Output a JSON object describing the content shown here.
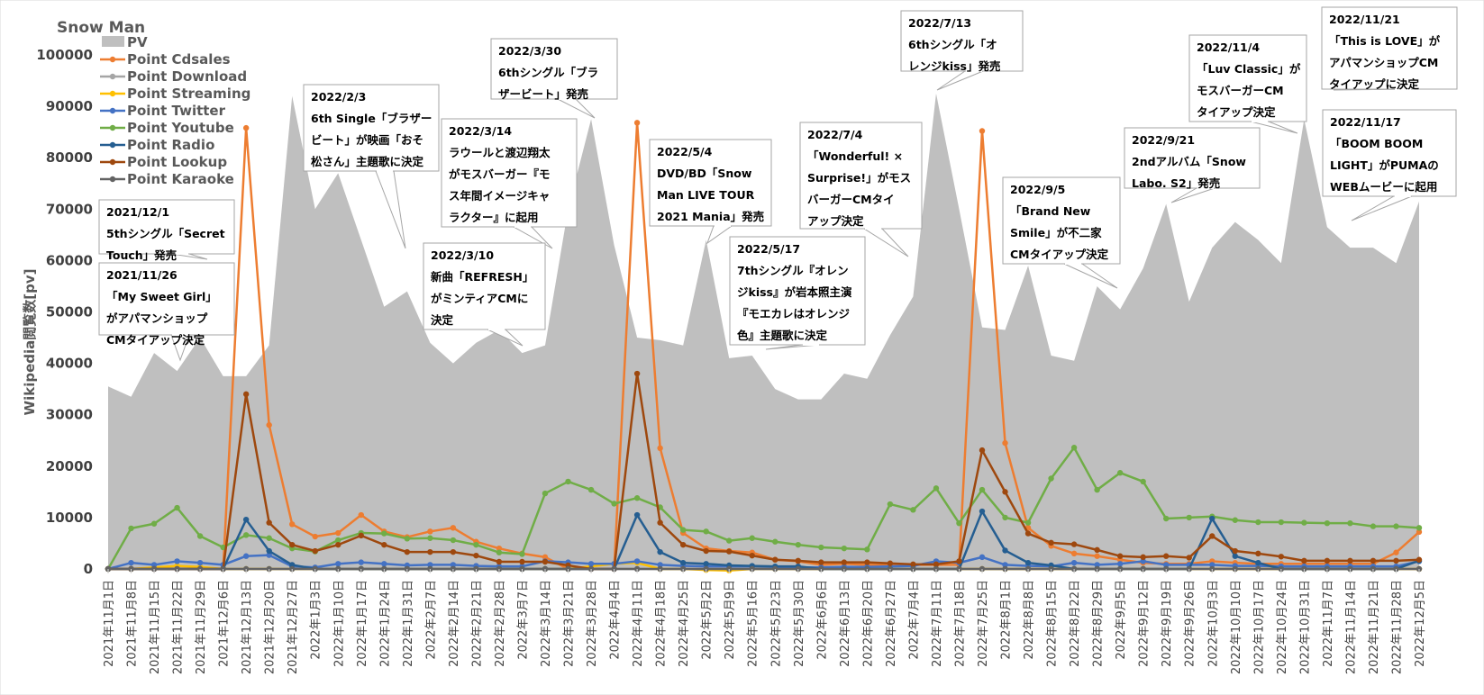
{
  "chart_data": {
    "type": "line",
    "title": "Snow Man",
    "ylabel": "Wikipedia閲覧数[pv]",
    "xlabel": "",
    "ylim": [
      0,
      100000
    ],
    "yticks": [
      0,
      10000,
      20000,
      30000,
      40000,
      50000,
      60000,
      70000,
      80000,
      90000,
      100000
    ],
    "yticklabels": [
      "0",
      "10000",
      "20000",
      "30000",
      "40000",
      "50000",
      "60000",
      "70000",
      "80000",
      "90000",
      "100000"
    ],
    "legend_position": "top-left",
    "categories": [
      "2021年11月1日",
      "2021年11月8日",
      "2021年11月15日",
      "2021年11月22日",
      "2021年11月29日",
      "2021年12月6日",
      "2021年12月13日",
      "2021年12月20日",
      "2021年12月27日",
      "2022年1月3日",
      "2022年1月10日",
      "2022年1月17日",
      "2022年1月24日",
      "2022年1月31日",
      "2022年2月7日",
      "2022年2月14日",
      "2022年2月21日",
      "2022年2月28日",
      "2022年3月7日",
      "2022年3月14日",
      "2022年3月21日",
      "2022年3月28日",
      "2022年4月4日",
      "2022年4月11日",
      "2022年4月18日",
      "2022年4月25日",
      "2022年5月2日",
      "2022年5月9日",
      "2022年5月16日",
      "2022年5月23日",
      "2022年5月30日",
      "2022年6月6日",
      "2022年6月13日",
      "2022年6月20日",
      "2022年6月27日",
      "2022年7月4日",
      "2022年7月11日",
      "2022年7月18日",
      "2022年7月25日",
      "2022年8月1日",
      "2022年8月8日",
      "2022年8月15日",
      "2022年8月22日",
      "2022年8月29日",
      "2022年9月5日",
      "2022年9月12日",
      "2022年9月19日",
      "2022年9月26日",
      "2022年10月3日",
      "2022年10月10日",
      "2022年10月17日",
      "2022年10月24日",
      "2022年10月31日",
      "2022年11月7日",
      "2022年11月14日",
      "2022年11月21日",
      "2022年11月28日",
      "2022年12月5日"
    ],
    "series": [
      {
        "name": "PV",
        "kind": "area",
        "color": "#bfbfbf",
        "values": [
          35500,
          33500,
          42000,
          38500,
          45000,
          37500,
          37500,
          43500,
          92000,
          70000,
          77000,
          64000,
          51000,
          54000,
          44000,
          40000,
          44000,
          46500,
          42000,
          43500,
          70000,
          87500,
          63000,
          45000,
          44500,
          43500,
          64000,
          41000,
          41500,
          35000,
          33000,
          33000,
          38000,
          37000,
          45500,
          53000,
          92500,
          70000,
          47000,
          46500,
          59000,
          41500,
          40500,
          55000,
          50500,
          58500,
          71000,
          52000,
          62500,
          67500,
          64000,
          59500,
          87500,
          66500,
          62500,
          62500,
          59500,
          71500
        ]
      },
      {
        "name": "Point Cdsales",
        "kind": "line",
        "color": "#ed7d31",
        "values": [
          0,
          0,
          0,
          0,
          0,
          0,
          85800,
          28000,
          8700,
          6300,
          7000,
          10500,
          7300,
          6200,
          7300,
          8000,
          5300,
          4000,
          3000,
          2300,
          0,
          0,
          0,
          86800,
          23500,
          7000,
          4000,
          3500,
          3200,
          1800,
          1500,
          800,
          1000,
          800,
          800,
          800,
          800,
          800,
          85200,
          24500,
          8000,
          4500,
          3000,
          2500,
          1800,
          1200,
          1000,
          1000,
          1500,
          1200,
          1000,
          1000,
          1000,
          1000,
          1000,
          1000,
          3200,
          7200
        ]
      },
      {
        "name": "Point Download",
        "kind": "line",
        "color": "#a5a5a5",
        "values": [
          0,
          0,
          0,
          0,
          0,
          0,
          0,
          0,
          0,
          0,
          0,
          0,
          0,
          0,
          0,
          0,
          0,
          0,
          0,
          0,
          0,
          0,
          0,
          0,
          0,
          0,
          0,
          0,
          0,
          0,
          0,
          0,
          0,
          0,
          0,
          0,
          0,
          0,
          0,
          0,
          0,
          0,
          0,
          0,
          0,
          0,
          0,
          0,
          0,
          0,
          0,
          0,
          0,
          0,
          0,
          0,
          0,
          0
        ]
      },
      {
        "name": "Point Streaming",
        "kind": "line",
        "color": "#ffc000",
        "values": [
          0,
          0,
          300,
          600,
          400,
          0,
          0,
          0,
          0,
          0,
          0,
          0,
          0,
          0,
          0,
          0,
          0,
          0,
          0,
          0,
          0,
          500,
          1000,
          1200,
          0,
          0,
          -200,
          -300,
          0,
          0,
          0,
          0,
          0,
          0,
          0,
          0,
          0,
          0,
          0,
          0,
          0,
          0,
          0,
          0,
          0,
          0,
          0,
          0,
          0,
          0,
          0,
          0,
          0,
          0,
          0,
          0,
          0,
          0
        ]
      },
      {
        "name": "Point Twitter",
        "kind": "line",
        "color": "#4472c4",
        "values": [
          0,
          1200,
          800,
          1500,
          1200,
          800,
          2500,
          2700,
          500,
          300,
          1000,
          1300,
          1000,
          700,
          800,
          800,
          600,
          500,
          500,
          1500,
          1300,
          1000,
          1000,
          1500,
          800,
          600,
          500,
          500,
          500,
          400,
          300,
          300,
          400,
          400,
          500,
          600,
          1500,
          1200,
          2300,
          800,
          600,
          500,
          1200,
          800,
          1000,
          1500,
          800,
          800,
          800,
          600,
          600,
          500,
          500,
          500,
          500,
          500,
          500,
          1500
        ]
      },
      {
        "name": "Point Youtube",
        "kind": "line",
        "color": "#70ad47",
        "values": [
          0,
          7900,
          8800,
          11900,
          6400,
          4200,
          6600,
          6000,
          4000,
          3400,
          5600,
          7000,
          6900,
          5900,
          6000,
          5600,
          4700,
          3200,
          2900,
          14700,
          17000,
          15400,
          12700,
          13800,
          12000,
          7600,
          7300,
          5500,
          6000,
          5300,
          4700,
          4200,
          4000,
          3800,
          12600,
          11500,
          15700,
          8900,
          15400,
          10000,
          9000,
          17600,
          23600,
          15400,
          18700,
          17000,
          9800,
          10000,
          10200,
          9500,
          9100,
          9100,
          9000,
          8900,
          8900,
          8300,
          8300,
          8000
        ]
      },
      {
        "name": "Point Radio",
        "kind": "line",
        "color": "#255e91",
        "values": [
          0,
          0,
          0,
          0,
          0,
          0,
          9600,
          3500,
          800,
          0,
          0,
          0,
          0,
          0,
          0,
          0,
          0,
          0,
          0,
          0,
          0,
          0,
          0,
          10500,
          3300,
          1200,
          1000,
          700,
          600,
          500,
          500,
          0,
          0,
          0,
          0,
          0,
          0,
          0,
          11200,
          3600,
          1200,
          700,
          0,
          0,
          0,
          0,
          0,
          0,
          9800,
          2500,
          1200,
          0,
          0,
          0,
          0,
          0,
          0,
          1600
        ]
      },
      {
        "name": "Point Lookup",
        "kind": "line",
        "color": "#9e480e",
        "values": [
          0,
          0,
          0,
          0,
          0,
          0,
          34000,
          9000,
          4700,
          3500,
          4700,
          6500,
          4700,
          3300,
          3300,
          3300,
          2600,
          1400,
          1400,
          1400,
          700,
          0,
          0,
          38000,
          9000,
          4700,
          3500,
          3400,
          2600,
          1800,
          1600,
          1300,
          1300,
          1300,
          1100,
          900,
          900,
          1500,
          23100,
          15000,
          6900,
          5100,
          4800,
          3700,
          2500,
          2300,
          2500,
          2200,
          6400,
          3500,
          3000,
          2400,
          1600,
          1600,
          1600,
          1600,
          1600,
          1800
        ]
      },
      {
        "name": "Point Karaoke",
        "kind": "line",
        "color": "#636363",
        "values": [
          0,
          0,
          0,
          0,
          0,
          0,
          0,
          0,
          0,
          0,
          0,
          0,
          0,
          0,
          0,
          0,
          0,
          0,
          0,
          0,
          0,
          0,
          0,
          0,
          0,
          0,
          0,
          0,
          0,
          0,
          0,
          0,
          0,
          0,
          0,
          0,
          0,
          0,
          0,
          0,
          0,
          0,
          0,
          0,
          0,
          0,
          0,
          0,
          0,
          0,
          0,
          0,
          0,
          0,
          0,
          0,
          0,
          0
        ]
      }
    ],
    "annotations": [
      {
        "lines": [
          "2021/12/1",
          "5thシングル「Secret",
          "Touch」発売"
        ],
        "target_index": 4
      },
      {
        "lines": [
          "2021/11/26",
          "「My Sweet Girl」",
          "がアパマンショップ",
          "CMタイアップ決定"
        ],
        "target_index": 3
      },
      {
        "lines": [
          "2022/2/3",
          "6th Single「ブラザー",
          "ビート」が映画「おそ",
          "松さん」主題歌に決定"
        ],
        "target_index": 13
      },
      {
        "lines": [
          "2022/3/14",
          "ラウールと渡辺翔太",
          "がモスバーガー『モ",
          "ス年間イメージキャ",
          "ラクター』に起用"
        ],
        "target_index": 19
      },
      {
        "lines": [
          "2022/3/10",
          "新曲「REFRESH」",
          "がミンティアCMに",
          "決定"
        ],
        "target_index": 18
      },
      {
        "lines": [
          "2022/3/30",
          "6thシングル「ブラ",
          "ザービート」発売"
        ],
        "target_index": 21
      },
      {
        "lines": [
          "2022/5/4",
          "DVD/BD「Snow",
          "Man LIVE TOUR",
          "2021 Mania」発売"
        ],
        "target_index": 26
      },
      {
        "lines": [
          "2022/5/17",
          "7thシングル『オレン",
          "ジkiss』が岩本照主演",
          "『モエカレはオレンジ",
          "色』主題歌に決定"
        ],
        "target_index": 28
      },
      {
        "lines": [
          "2022/7/4",
          "「Wonderful! ×",
          "Surprise!」がモス",
          "バーガーCMタイ",
          "アップ決定"
        ],
        "target_index": 35
      },
      {
        "lines": [
          "2022/7/13",
          "6thシングル「オ",
          "レンジkiss」発売"
        ],
        "target_index": 36
      },
      {
        "lines": [
          "2022/9/5",
          "「Brand New",
          "Smile」が不二家",
          "CMタイアップ決定"
        ],
        "target_index": 44
      },
      {
        "lines": [
          "2022/9/21",
          "2ndアルバム「Snow",
          "Labo. S2」発売"
        ],
        "target_index": 46
      },
      {
        "lines": [
          "2022/11/4",
          "「Luv Classic」が",
          "モスバーガーCM",
          "タイアップ決定"
        ],
        "target_index": 52
      },
      {
        "lines": [
          "2022/11/21",
          "「This is LOVE」が",
          "アパマンショップCM",
          "タイアップに決定"
        ],
        "target_index": 55
      },
      {
        "lines": [
          "2022/11/17",
          "「BOOM BOOM",
          "LIGHT」がPUMAの",
          "WEBムービーに起用"
        ],
        "target_index": 54
      }
    ]
  }
}
